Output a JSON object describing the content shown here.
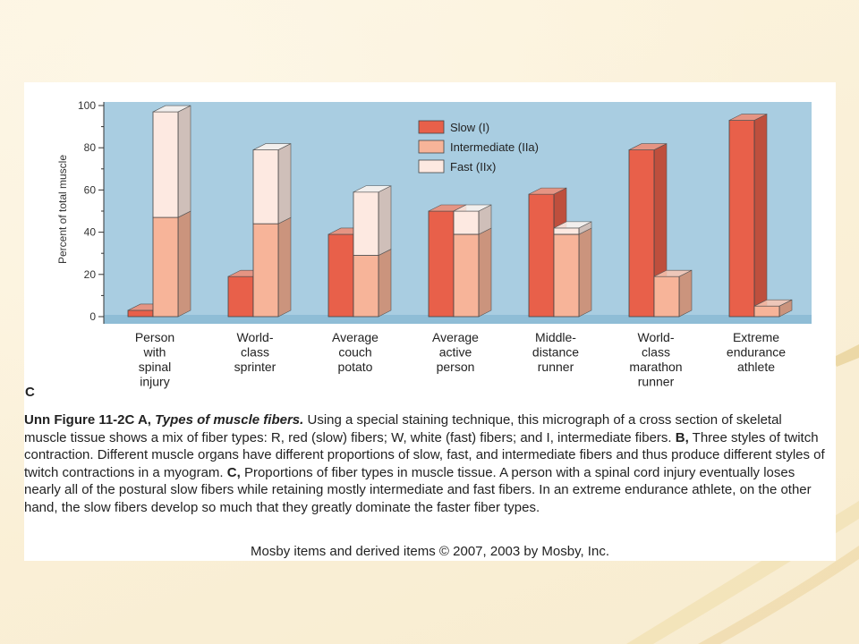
{
  "chart_data": {
    "type": "bar",
    "ylabel": "Percent of total muscle",
    "ylim": [
      0,
      100
    ],
    "yticks": [
      0,
      20,
      40,
      60,
      80,
      100
    ],
    "categories": [
      [
        "Person",
        "with",
        "spinal",
        "injury"
      ],
      [
        "World-",
        "class",
        "sprinter"
      ],
      [
        "Average",
        "couch",
        "potato"
      ],
      [
        "Average",
        "active",
        "person"
      ],
      [
        "Middle-",
        "distance",
        "runner"
      ],
      [
        "World-",
        "class",
        "marathon",
        "runner"
      ],
      [
        "Extreme",
        "endurance",
        "athlete"
      ]
    ],
    "series": [
      {
        "name": "Slow (I)",
        "values": [
          3,
          19,
          39,
          50,
          58,
          79,
          93
        ],
        "color": "#e8604a"
      },
      {
        "name": "Intermediate (IIa)",
        "values": [
          47,
          44,
          29,
          39,
          39,
          19,
          5
        ],
        "color": "#f7b499"
      },
      {
        "name": "Fast (IIx)",
        "values": [
          50,
          35,
          30,
          11,
          3,
          0,
          0
        ],
        "color": "#fde9e1"
      }
    ],
    "legend": "top-center",
    "panel_label": "C"
  },
  "caption": {
    "lead": "Unn Figure 11-2C A,",
    "title": "Types of muscle fibers.",
    "text_a": "Using a special staining technique, this micrograph of a cross section of skeletal muscle tissue shows a mix of fiber types: R, red (slow) fibers; W, white (fast) fibers; and I, intermediate fibers.",
    "label_b": "B,",
    "text_b": "Three styles of twitch contraction. Different muscle organs have different proportions of slow, fast, and intermediate fibers and thus produce different styles of twitch contractions in a myogram.",
    "label_c": "C,",
    "text_c": "Proportions of fiber types in muscle tissue. A person with a spinal cord injury eventually loses nearly all of the postural slow fibers while retaining mostly intermediate and fast fibers. In an extreme endurance athlete, on the other hand, the slow fibers develop so much that they greatly dominate the faster fiber types."
  },
  "credit": "Mosby items and derived items © 2007, 2003 by Mosby, Inc."
}
